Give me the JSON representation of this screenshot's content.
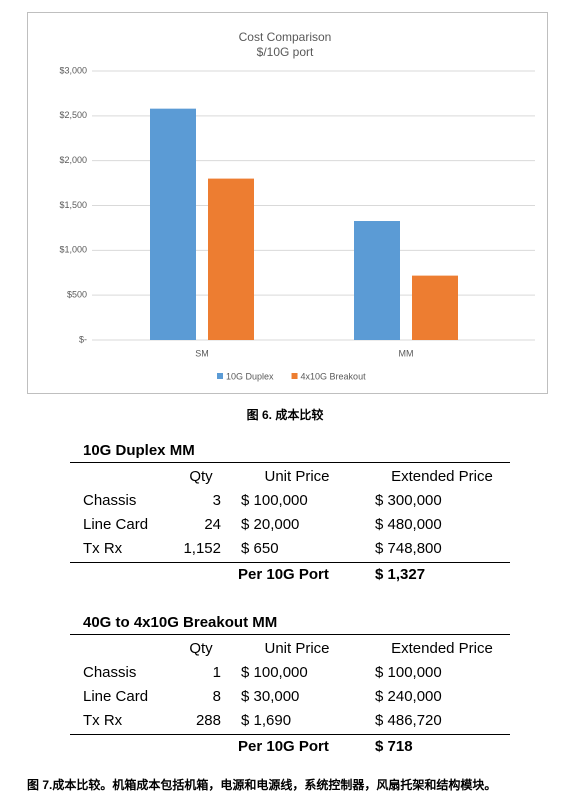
{
  "chart_data": {
    "type": "bar",
    "title": "Cost Comparison",
    "subtitle": "$/10G port",
    "categories": [
      "SM",
      "MM"
    ],
    "series": [
      {
        "name": "10G Duplex",
        "color": "#5b9bd5",
        "values": [
          2580,
          1327
        ]
      },
      {
        "name": "4x10G Breakout",
        "color": "#ed7d31",
        "values": [
          1800,
          718
        ]
      }
    ],
    "ylim": [
      0,
      3000
    ],
    "yticks": [
      {
        "value": 0,
        "label": "$-"
      },
      {
        "value": 500,
        "label": "$500"
      },
      {
        "value": 1000,
        "label": "$1,000"
      },
      {
        "value": 1500,
        "label": "$1,500"
      },
      {
        "value": 2000,
        "label": "$2,000"
      },
      {
        "value": 2500,
        "label": "$2,500"
      },
      {
        "value": 3000,
        "label": "$3,000"
      }
    ],
    "grid": true,
    "legend": "bottom"
  },
  "figure6_caption": "图 6. 成本比较",
  "tables": [
    {
      "title": "10G Duplex MM",
      "header": [
        "Qty",
        "Unit Price",
        "Extended Price"
      ],
      "rows": [
        [
          "Chassis",
          "3",
          "$ 100,000",
          "$ 300,000"
        ],
        [
          "Line Card",
          "24",
          "$ 20,000",
          "$ 480,000"
        ],
        [
          "Tx Rx",
          "1,152",
          "$ 650",
          "$ 748,800"
        ]
      ],
      "total_label": "Per 10G Port",
      "total": "$ 1,327"
    },
    {
      "title": "40G to 4x10G Breakout MM",
      "header": [
        "Qty",
        "Unit Price",
        "Extended Price"
      ],
      "rows": [
        [
          "Chassis",
          "1",
          "$ 100,000",
          "$ 100,000"
        ],
        [
          "Line Card",
          "8",
          "$ 30,000",
          "$ 240,000"
        ],
        [
          "Tx Rx",
          "288",
          "$ 1,690",
          "$ 486,720"
        ]
      ],
      "total_label": "Per 10G Port",
      "total": "$ 718"
    }
  ],
  "figure7_caption": "图 7.成本比较。机箱成本包括机箱，电源和电源线，系统控制器，风扇托架和结构模块。"
}
